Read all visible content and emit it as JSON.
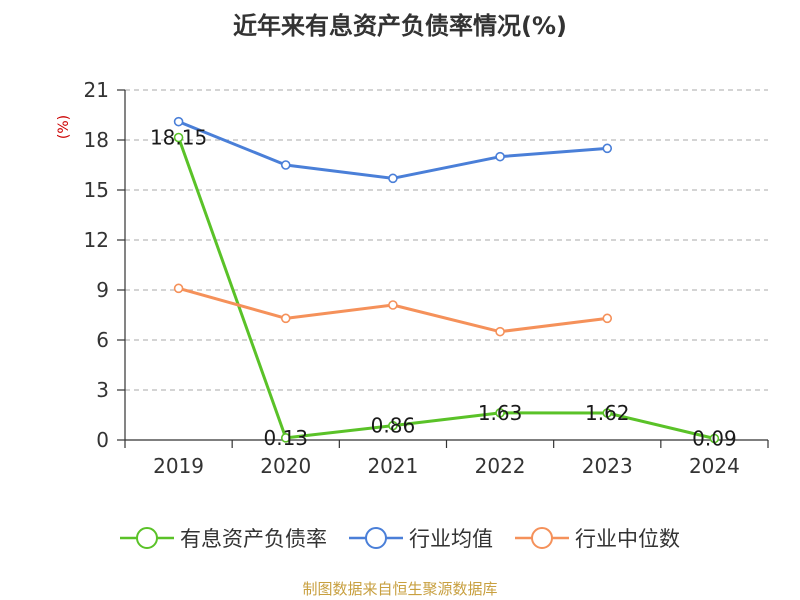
{
  "title": "近年来有息资产负债率情况(%)",
  "source": "制图数据来自恒生聚源数据库",
  "chart_data": {
    "type": "line",
    "title": "近年来有息资产负债率情况(%)",
    "ylabel": "(%)",
    "xlabel": "",
    "categories": [
      "2019",
      "2020",
      "2021",
      "2022",
      "2023",
      "2024"
    ],
    "ylim": [
      0,
      21
    ],
    "yticks": [
      0,
      3,
      6,
      9,
      12,
      15,
      18,
      21
    ],
    "grid": true,
    "legend_position": "bottom",
    "series": [
      {
        "name": "有息资产负债率",
        "color": "#5ac228",
        "values": [
          18.15,
          0.13,
          0.86,
          1.63,
          1.62,
          0.09
        ],
        "labels": [
          "18.15",
          "0.13",
          "0.86",
          "1.63",
          "1.62",
          "0.09"
        ]
      },
      {
        "name": "行业均值",
        "color": "#4a7fd8",
        "values": [
          19.1,
          16.5,
          15.7,
          17.0,
          17.5,
          null
        ]
      },
      {
        "name": "行业中位数",
        "color": "#f5915a",
        "values": [
          9.1,
          7.3,
          8.1,
          6.5,
          7.3,
          null
        ]
      }
    ]
  }
}
